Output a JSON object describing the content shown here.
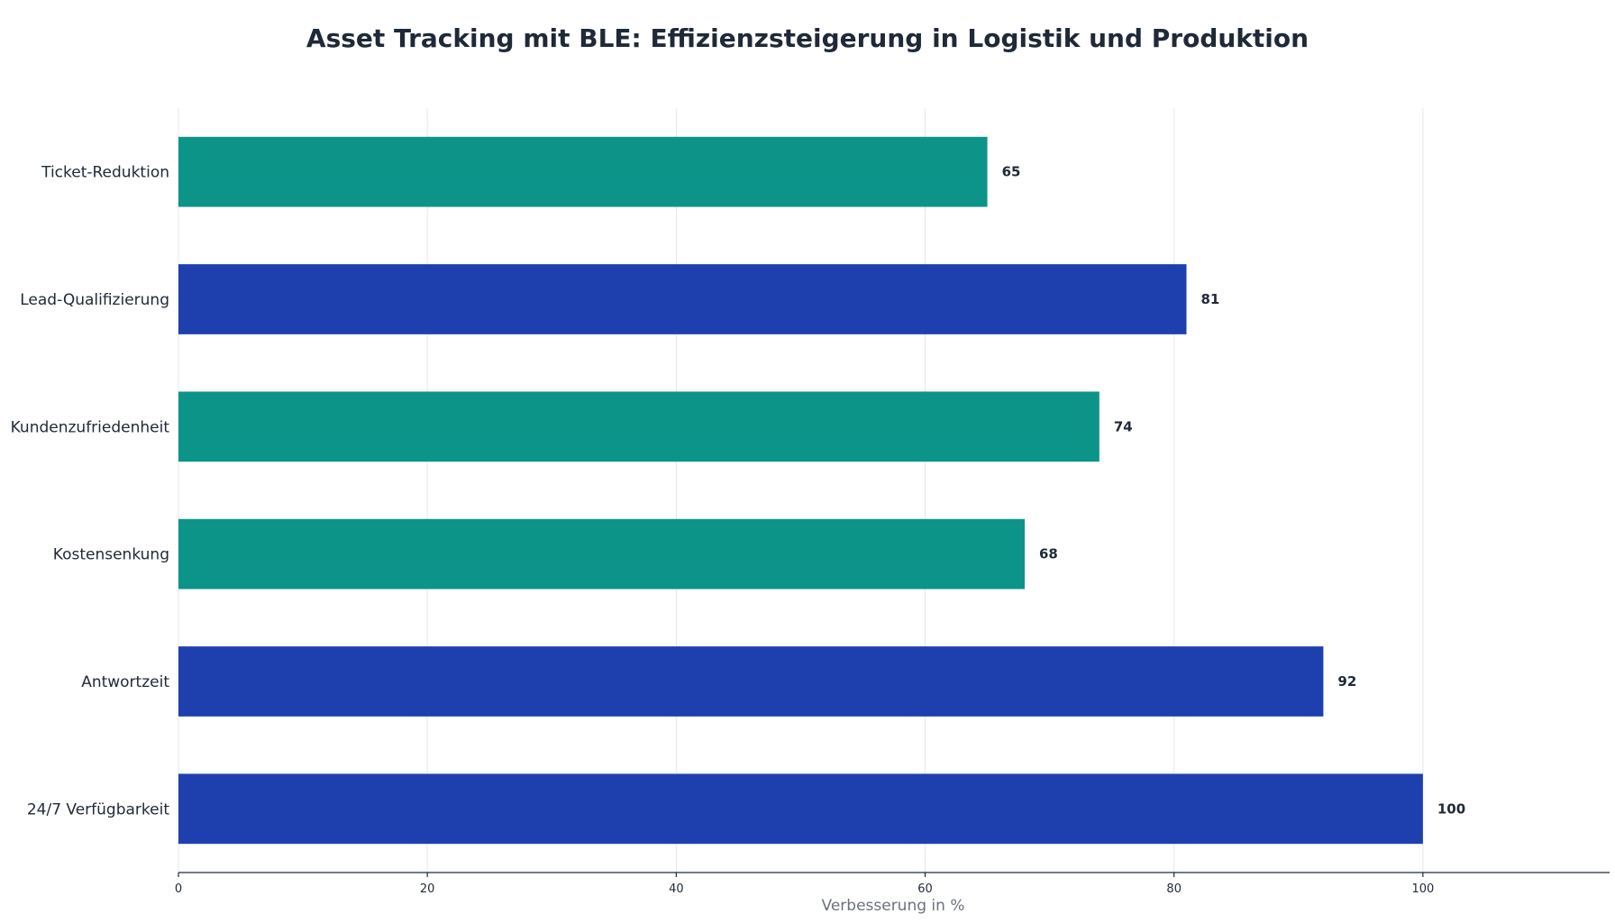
{
  "chart_data": {
    "type": "bar",
    "orientation": "horizontal",
    "title": "Asset Tracking mit BLE: Effizienzsteigerung in Logistik und Produktion",
    "xlabel": "Verbesserung in %",
    "ylabel": "",
    "xlim": [
      0,
      115
    ],
    "xticks": [
      0,
      20,
      40,
      60,
      80,
      100
    ],
    "grid": "vertical",
    "categories": [
      "Ticket-Reduktion",
      "Lead-Qualifizierung",
      "Kundenzufriedenheit",
      "Kostensenkung",
      "Antwortzeit",
      "24/7 Verfügbarkeit"
    ],
    "values": [
      65,
      81,
      74,
      68,
      92,
      100
    ],
    "colors": [
      "#0d9488",
      "#1e40af",
      "#0d9488",
      "#0d9488",
      "#1e40af",
      "#1e40af"
    ]
  }
}
